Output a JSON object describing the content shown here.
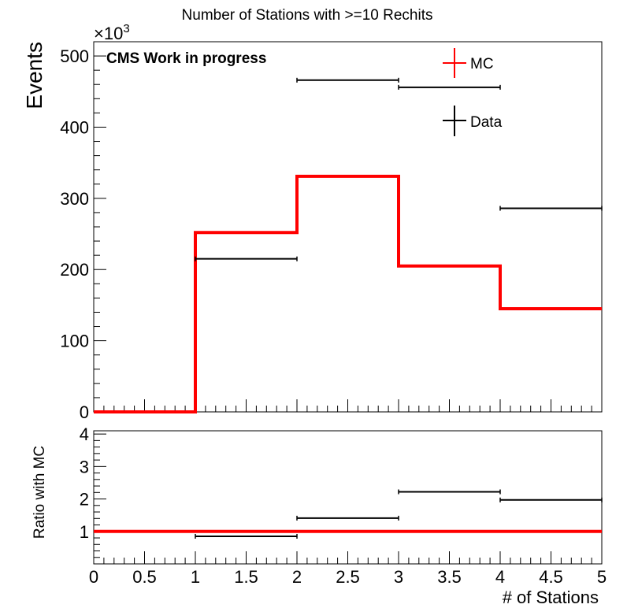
{
  "chart_data": {
    "type": "histogram",
    "title": "Number of Stations with >=10 Rechits",
    "annotation": "CMS Work in progress",
    "x_label": "# of Stations",
    "xlim": [
      0,
      5
    ],
    "x_ticks": [
      "0",
      "0.5",
      "1",
      "1.5",
      "2",
      "2.5",
      "3",
      "3.5",
      "4",
      "4.5",
      "5"
    ],
    "bin_edges": [
      0,
      1,
      2,
      3,
      4,
      5
    ],
    "legend": {
      "position": "top-right",
      "entries": [
        "MC",
        "Data"
      ]
    },
    "top_panel": {
      "y_label": "Events",
      "y_multiplier": "×10",
      "y_multiplier_exponent": "3",
      "ylim": [
        0,
        520
      ],
      "y_ticks": [
        "0",
        "100",
        "200",
        "300",
        "400",
        "500"
      ],
      "series": [
        {
          "name": "MC",
          "style": "step",
          "color": "#ff0000",
          "values": [
            0,
            252,
            331,
            205,
            145
          ]
        },
        {
          "name": "Data",
          "style": "errorbar",
          "color": "#000000",
          "values": [
            0,
            215,
            466,
            456,
            286
          ]
        }
      ]
    },
    "ratio_panel": {
      "y_label": "Ratio with MC",
      "ylim": [
        0,
        4.1
      ],
      "y_ticks": [
        "1",
        "2",
        "3",
        "4"
      ],
      "reference_line": 1,
      "series": [
        {
          "name": "Data / MC",
          "style": "errorbar",
          "color": "#000000",
          "values": [
            null,
            0.85,
            1.41,
            2.22,
            1.97
          ]
        }
      ],
      "reference_color": "#ff0000"
    }
  }
}
